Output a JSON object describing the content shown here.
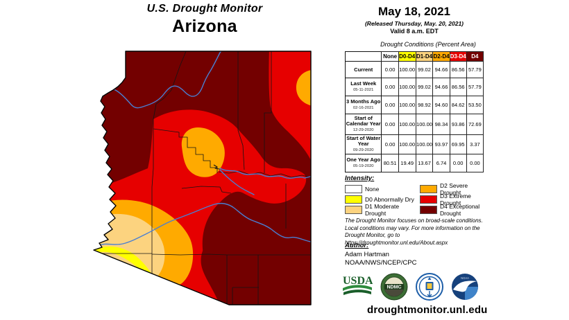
{
  "title": {
    "line1": "U.S. Drought Monitor",
    "line2": "Arizona"
  },
  "date_block": {
    "date": "May 18, 2021",
    "released": "(Released Thursday, May. 20, 2021)",
    "valid": "Valid 8 a.m. EDT"
  },
  "table": {
    "caption": "Drought Conditions (Percent Area)",
    "columns": [
      "None",
      "D0-D4",
      "D1-D4",
      "D2-D4",
      "D3-D4",
      "D4"
    ],
    "column_colors": [
      "none",
      "d0",
      "d1",
      "d2",
      "d3",
      "d4"
    ],
    "rows": [
      {
        "label": "Current",
        "date": "",
        "values": [
          "0.00",
          "100.00",
          "99.02",
          "94.66",
          "86.56",
          "57.79"
        ]
      },
      {
        "label": "Last Week",
        "date": "05-11-2021",
        "values": [
          "0.00",
          "100.00",
          "99.02",
          "94.66",
          "86.56",
          "57.79"
        ]
      },
      {
        "label": "3 Months Ago",
        "date": "02-16-2021",
        "values": [
          "0.00",
          "100.00",
          "98.92",
          "94.60",
          "84.62",
          "53.50"
        ]
      },
      {
        "label": "Start of Calendar Year",
        "date": "12-29-2020",
        "values": [
          "0.00",
          "100.00",
          "100.00",
          "98.34",
          "93.86",
          "72.69"
        ]
      },
      {
        "label": "Start of Water Year",
        "date": "09-29-2020",
        "values": [
          "0.00",
          "100.00",
          "100.00",
          "93.97",
          "69.95",
          "3.37"
        ]
      },
      {
        "label": "One Year Ago",
        "date": "05-19-2020",
        "values": [
          "80.51",
          "19.49",
          "13.67",
          "6.74",
          "0.00",
          "0.00"
        ]
      }
    ]
  },
  "legend": {
    "heading": "Intensity:",
    "items": [
      {
        "label": "None",
        "color": "none"
      },
      {
        "label": "D0 Abnormally Dry",
        "color": "d0"
      },
      {
        "label": "D1 Moderate Drought",
        "color": "d1"
      },
      {
        "label": "D2 Severe Drought",
        "color": "d2"
      },
      {
        "label": "D3 Extreme Drought",
        "color": "d3"
      },
      {
        "label": "D4 Exceptional Drought",
        "color": "d4"
      }
    ]
  },
  "disclaimer_lines": [
    "The Drought Monitor focuses on broad-scale conditions.",
    "Local conditions may vary. For more information on the",
    "Drought Monitor, go to https://droughtmonitor.unl.edu/About.aspx"
  ],
  "author": {
    "heading": "Author:",
    "name": "Adam Hartman",
    "org": "NOAA/NWS/NCEP/CPC"
  },
  "footer": {
    "url": "droughtmonitor.unl.edu"
  },
  "logos": {
    "usda": "USDA",
    "ndmc": "NDMC"
  },
  "colors": {
    "none": "#FFFFFF",
    "d0": "#FFFF00",
    "d1": "#FCD37F",
    "d2": "#FFAA00",
    "d3": "#E60000",
    "d4": "#730000",
    "river": "#4A7FD2",
    "county": "#141414",
    "border": "#000000"
  }
}
